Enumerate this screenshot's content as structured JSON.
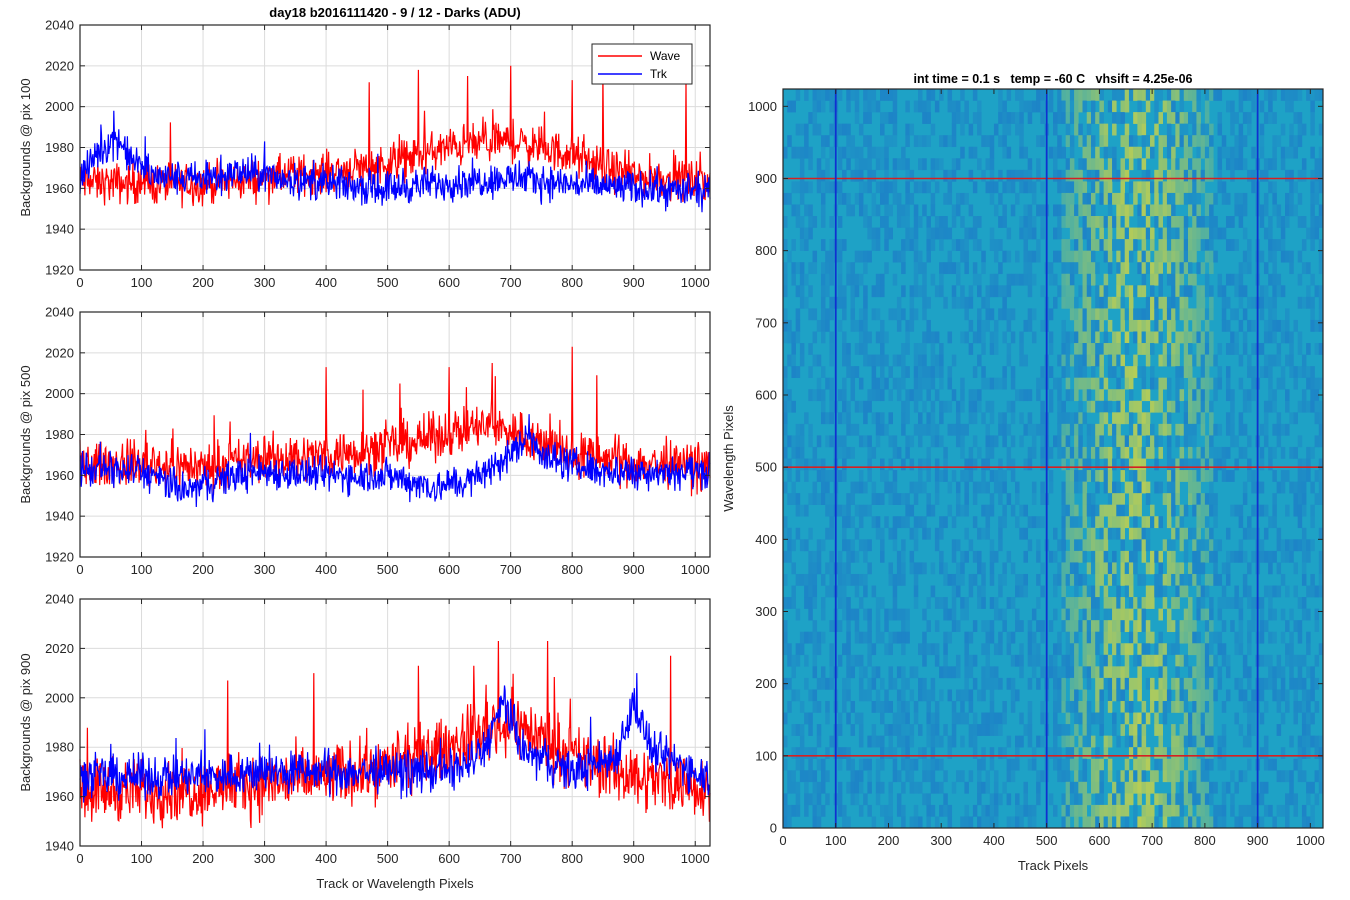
{
  "figure": {
    "title": "day18 b2016111420 - 9 / 12 - Darks (ADU)"
  },
  "chart_data": [
    {
      "type": "line",
      "ylabel": "Backgrounds @ pix 100",
      "xlabel": "",
      "xlim": [
        0,
        1024
      ],
      "ylim": [
        1920,
        2040
      ],
      "xticks": [
        0,
        100,
        200,
        300,
        400,
        500,
        600,
        700,
        800,
        900,
        1000
      ],
      "yticks": [
        1920,
        1940,
        1960,
        1980,
        2000,
        2020,
        2040
      ],
      "grid": true,
      "legend": {
        "placement": "top-right",
        "entries": [
          "Wave",
          "Trk"
        ]
      },
      "series": [
        {
          "name": "Wave",
          "color": "#ff0000",
          "baseline": [
            [
              0,
              1963
            ],
            [
              100,
              1962
            ],
            [
              200,
              1962
            ],
            [
              300,
              1965
            ],
            [
              400,
              1968
            ],
            [
              500,
              1972
            ],
            [
              550,
              1976
            ],
            [
              600,
              1980
            ],
            [
              650,
              1982
            ],
            [
              700,
              1983
            ],
            [
              750,
              1980
            ],
            [
              800,
              1976
            ],
            [
              850,
              1970
            ],
            [
              900,
              1966
            ],
            [
              1024,
              1963
            ]
          ],
          "noise": 7,
          "peaks": [
            [
              470,
              2012
            ],
            [
              550,
              2018
            ],
            [
              560,
              1998
            ],
            [
              630,
              2015
            ],
            [
              700,
              2020
            ],
            [
              800,
              2013
            ],
            [
              850,
              2017
            ],
            [
              985,
              2013
            ]
          ]
        },
        {
          "name": "Trk",
          "color": "#0000ff",
          "baseline": [
            [
              0,
              1964
            ],
            [
              30,
              1978
            ],
            [
              60,
              1985
            ],
            [
              80,
              1975
            ],
            [
              120,
              1966
            ],
            [
              200,
              1964
            ],
            [
              260,
              1968
            ],
            [
              300,
              1966
            ],
            [
              400,
              1962
            ],
            [
              500,
              1960
            ],
            [
              600,
              1963
            ],
            [
              700,
              1965
            ],
            [
              800,
              1962
            ],
            [
              900,
              1960
            ],
            [
              1024,
              1958
            ]
          ],
          "noise": 6,
          "peaks": [
            [
              55,
              1998
            ],
            [
              300,
              1983
            ]
          ]
        }
      ]
    },
    {
      "type": "line",
      "ylabel": "Backgrounds @ pix 500",
      "xlabel": "",
      "xlim": [
        0,
        1024
      ],
      "ylim": [
        1920,
        2040
      ],
      "xticks": [
        0,
        100,
        200,
        300,
        400,
        500,
        600,
        700,
        800,
        900,
        1000
      ],
      "yticks": [
        1920,
        1940,
        1960,
        1980,
        2000,
        2020,
        2040
      ],
      "grid": true,
      "series": [
        {
          "name": "Wave",
          "color": "#ff0000",
          "baseline": [
            [
              0,
              1965
            ],
            [
              100,
              1966
            ],
            [
              200,
              1964
            ],
            [
              300,
              1968
            ],
            [
              400,
              1970
            ],
            [
              500,
              1974
            ],
            [
              600,
              1980
            ],
            [
              650,
              1984
            ],
            [
              700,
              1982
            ],
            [
              750,
              1976
            ],
            [
              800,
              1970
            ],
            [
              900,
              1966
            ],
            [
              1024,
              1964
            ]
          ],
          "noise": 8,
          "peaks": [
            [
              400,
              2013
            ],
            [
              460,
              2002
            ],
            [
              520,
              2005
            ],
            [
              600,
              2013
            ],
            [
              670,
              2015
            ],
            [
              800,
              2023
            ],
            [
              840,
              2009
            ]
          ]
        },
        {
          "name": "Trk",
          "color": "#0000ff",
          "baseline": [
            [
              0,
              1963
            ],
            [
              100,
              1962
            ],
            [
              170,
              1952
            ],
            [
              250,
              1960
            ],
            [
              300,
              1962
            ],
            [
              400,
              1960
            ],
            [
              500,
              1960
            ],
            [
              580,
              1954
            ],
            [
              640,
              1958
            ],
            [
              700,
              1970
            ],
            [
              730,
              1980
            ],
            [
              760,
              1968
            ],
            [
              850,
              1962
            ],
            [
              1024,
              1962
            ]
          ],
          "noise": 6,
          "peaks": [
            [
              730,
              1990
            ]
          ]
        }
      ]
    },
    {
      "type": "line",
      "ylabel": "Backgrounds @ pix 900",
      "xlabel": "Track or Wavelength Pixels",
      "xlim": [
        0,
        1024
      ],
      "ylim": [
        1940,
        2040
      ],
      "xticks": [
        0,
        100,
        200,
        300,
        400,
        500,
        600,
        700,
        800,
        900,
        1000
      ],
      "yticks": [
        1940,
        1960,
        1980,
        2000,
        2020,
        2040
      ],
      "grid": true,
      "series": [
        {
          "name": "Wave",
          "color": "#ff0000",
          "baseline": [
            [
              0,
              1963
            ],
            [
              100,
              1962
            ],
            [
              200,
              1963
            ],
            [
              300,
              1965
            ],
            [
              400,
              1968
            ],
            [
              500,
              1972
            ],
            [
              600,
              1980
            ],
            [
              650,
              1986
            ],
            [
              700,
              1990
            ],
            [
              750,
              1984
            ],
            [
              800,
              1976
            ],
            [
              900,
              1968
            ],
            [
              1024,
              1964
            ]
          ],
          "noise": 9,
          "peaks": [
            [
              240,
              2007
            ],
            [
              380,
              2010
            ],
            [
              550,
              2013
            ],
            [
              640,
              2013
            ],
            [
              680,
              2023
            ],
            [
              760,
              2023
            ],
            [
              960,
              2017
            ]
          ]
        },
        {
          "name": "Trk",
          "color": "#0000ff",
          "baseline": [
            [
              0,
              1968
            ],
            [
              100,
              1968
            ],
            [
              200,
              1968
            ],
            [
              300,
              1970
            ],
            [
              400,
              1970
            ],
            [
              500,
              1970
            ],
            [
              600,
              1970
            ],
            [
              650,
              1976
            ],
            [
              690,
              1998
            ],
            [
              720,
              1978
            ],
            [
              800,
              1970
            ],
            [
              870,
              1976
            ],
            [
              900,
              1998
            ],
            [
              930,
              1978
            ],
            [
              1024,
              1968
            ]
          ],
          "noise": 6,
          "peaks": [
            [
              690,
              2005
            ],
            [
              905,
              2010
            ]
          ]
        }
      ]
    },
    {
      "type": "heatmap",
      "title": "int time = 0.1 s   temp = -60 C   vhsift = 4.25e-06",
      "xlabel": "Track Pixels",
      "ylabel": "Wavelength Pixels",
      "xlim": [
        0,
        1024
      ],
      "ylim": [
        0,
        1024
      ],
      "xticks": [
        0,
        100,
        200,
        300,
        400,
        500,
        600,
        700,
        800,
        900,
        1000
      ],
      "yticks": [
        0,
        100,
        200,
        300,
        400,
        500,
        600,
        700,
        800,
        900,
        1000
      ],
      "colors": {
        "low": "#1d6fc7",
        "mid": "#1ea2c6",
        "high": "#c8d24a"
      },
      "bright_band_center": 670,
      "bright_band_width": 140,
      "hlines": {
        "values": [
          100,
          500,
          900
        ],
        "color": "#d62020"
      },
      "vlines": {
        "values": [
          100,
          500,
          900
        ],
        "color": "#1030d0"
      }
    }
  ]
}
